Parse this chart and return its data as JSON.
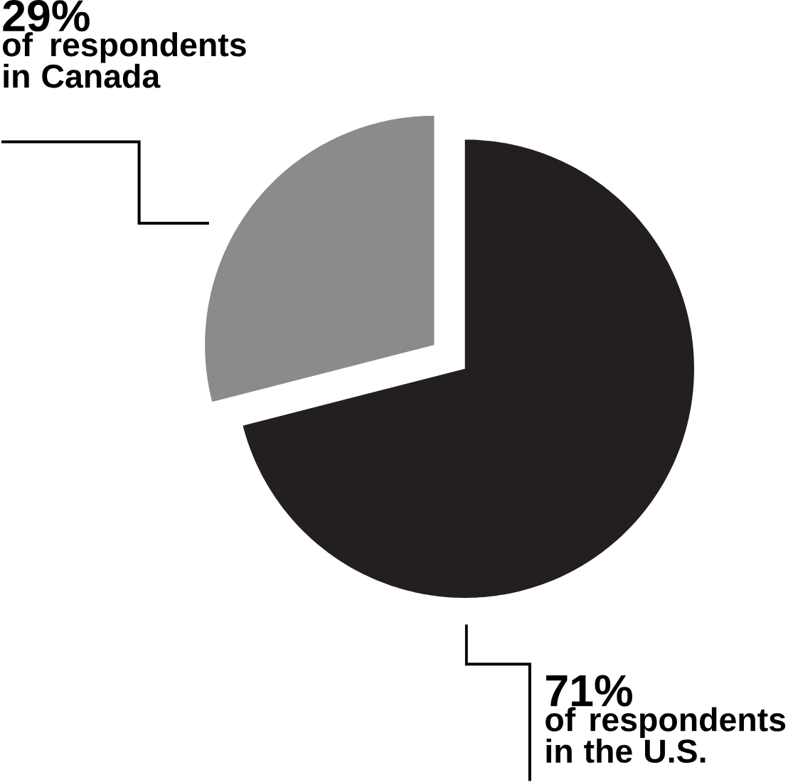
{
  "chart_data": {
    "type": "pie",
    "categories": [
      "of respondents in Canada",
      "of respondents in the U.S."
    ],
    "values": [
      29,
      71
    ],
    "value_labels": [
      "29%",
      "71%"
    ],
    "colors": [
      "#8c8a8a",
      "#231f20"
    ]
  }
}
